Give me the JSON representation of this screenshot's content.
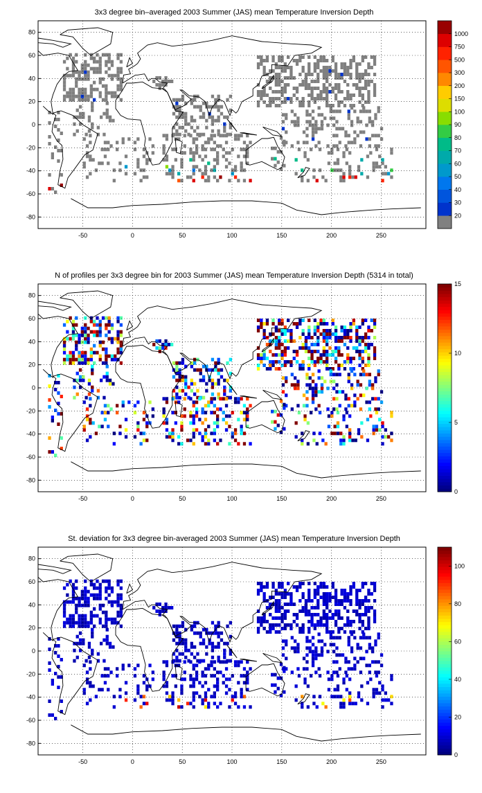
{
  "maps": [
    {
      "title": "3x3 degree bin–averaged 2003 Summer (JAS) mean Temperature Inversion Depth",
      "x_ticks": [
        "-50",
        "0",
        "50",
        "100",
        "150",
        "200",
        "250"
      ],
      "y_ticks": [
        "80",
        "60",
        "40",
        "20",
        "0",
        "-20",
        "-40",
        "-60",
        "-80"
      ],
      "colorbar": {
        "type": "discrete",
        "labels": [
          "20",
          "30",
          "40",
          "50",
          "60",
          "70",
          "80",
          "90",
          "100",
          "150",
          "200",
          "300",
          "500",
          "750",
          "1000"
        ],
        "colors": [
          "#808080",
          "#0033cc",
          "#0055dd",
          "#0077ee",
          "#0099cc",
          "#00aaaa",
          "#00bb88",
          "#33cc44",
          "#88dd00",
          "#dddd00",
          "#ffcc00",
          "#ff8800",
          "#ff5500",
          "#ff2200",
          "#dd0000",
          "#990000"
        ]
      }
    },
    {
      "title": "N of profiles per 3x3 degree bin for 2003 Summer (JAS) mean Temperature Inversion Depth  (5314 in total)",
      "x_ticks": [
        "-50",
        "0",
        "50",
        "100",
        "150",
        "200",
        "250"
      ],
      "y_ticks": [
        "80",
        "60",
        "40",
        "20",
        "0",
        "-20",
        "-40",
        "-60",
        "-80"
      ],
      "colorbar": {
        "type": "continuous",
        "ticks": [
          "0",
          "5",
          "10",
          "15"
        ],
        "range": [
          0,
          15
        ]
      }
    },
    {
      "title": "St. deviation for 3x3 degree bin-averaged 2003 Summer (JAS) mean Temperature Inversion Depth",
      "x_ticks": [
        "-50",
        "0",
        "50",
        "100",
        "150",
        "200",
        "250"
      ],
      "y_ticks": [
        "80",
        "60",
        "40",
        "20",
        "0",
        "-20",
        "-40",
        "-60",
        "-80"
      ],
      "colorbar": {
        "type": "continuous",
        "ticks": [
          "0",
          "20",
          "40",
          "60",
          "80",
          "100"
        ],
        "range": [
          0,
          110
        ]
      }
    }
  ]
}
